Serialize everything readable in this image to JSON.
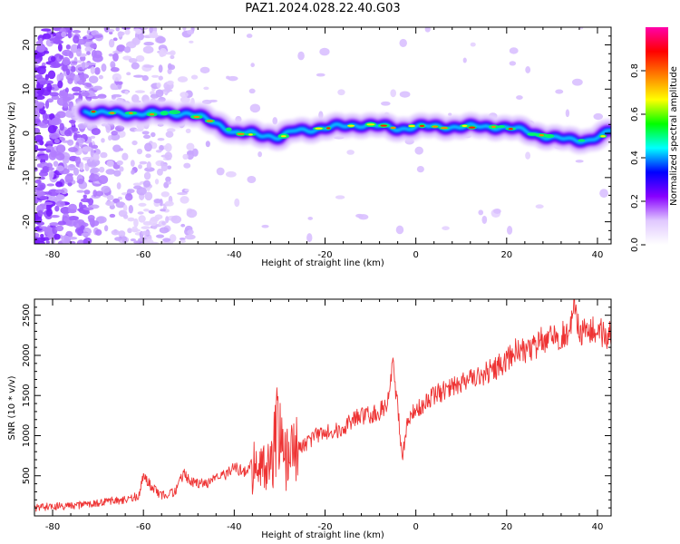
{
  "title": "PAZ1.2024.028.22.40.G03",
  "chart_data": [
    {
      "type": "heatmap",
      "xlabel": "Height of straight line (km)",
      "ylabel": "Frequency (Hz)",
      "xlim": [
        -84,
        43
      ],
      "ylim": [
        -25,
        24
      ],
      "xticks": [
        "-80",
        "-60",
        "-40",
        "-20",
        "0",
        "20",
        "40"
      ],
      "yticks": [
        "-20",
        "-10",
        "0",
        "10",
        "20"
      ],
      "colorbar": {
        "label": "Normalized spectral amplitude",
        "range": [
          0,
          1
        ],
        "ticks": [
          "0.0",
          "0.2",
          "0.4",
          "0.6",
          "0.8"
        ],
        "colors": [
          "#ffffff",
          "#e0c8ff",
          "#8800ff",
          "#0000ff",
          "#00ffff",
          "#00ff00",
          "#ffff00",
          "#ff8000",
          "#ff0000",
          "#ff00aa"
        ]
      },
      "ridge": {
        "height_km": [
          -73,
          -68,
          -63,
          -58,
          -54,
          -50,
          -47,
          -43,
          -40,
          -36,
          -32,
          -30,
          -27,
          -22,
          -17,
          -12,
          -7,
          -4,
          0,
          4,
          8,
          13,
          18,
          22,
          26,
          30,
          34,
          38,
          41,
          43
        ],
        "frequency_hz": [
          5,
          4.5,
          4.5,
          4.5,
          4.5,
          4.5,
          3.5,
          2,
          0,
          0,
          -0.5,
          -1,
          0.5,
          1,
          1.5,
          2,
          1.5,
          1,
          1.5,
          1.5,
          1.5,
          1.5,
          1.5,
          1,
          0,
          -1,
          -1.5,
          -1.5,
          -0.5,
          0.5
        ]
      }
    },
    {
      "type": "line",
      "xlabel": "Height of straight line (km)",
      "ylabel": "SNR (10 * v/v)",
      "xlim": [
        -84,
        43
      ],
      "ylim": [
        0,
        2700
      ],
      "xticks": [
        "-80",
        "-60",
        "-40",
        "-20",
        "0",
        "20",
        "40"
      ],
      "yticks": [
        "500",
        "1000",
        "1500",
        "2000",
        "2500"
      ],
      "color": "#ee3333",
      "series": [
        {
          "x": [
            -84,
            -80,
            -76,
            -72,
            -68,
            -64,
            -61,
            -60,
            -58,
            -56,
            -53,
            -51,
            -50,
            -48,
            -46,
            -44,
            -42,
            -40,
            -38,
            -36,
            -34,
            -32,
            -31,
            -30,
            -29,
            -28,
            -26,
            -24,
            -22,
            -20,
            -18,
            -16,
            -14,
            -12,
            -10,
            -8,
            -6,
            -5,
            -4,
            -3,
            -2,
            0,
            2,
            4,
            6,
            8,
            10,
            12,
            14,
            16,
            18,
            20,
            22,
            24,
            26,
            28,
            30,
            32,
            34,
            35,
            36,
            38,
            40,
            42,
            43
          ],
          "y": [
            100,
            120,
            120,
            150,
            180,
            200,
            250,
            500,
            350,
            250,
            300,
            550,
            450,
            400,
            400,
            500,
            500,
            600,
            550,
            650,
            650,
            700,
            900,
            1250,
            700,
            750,
            850,
            900,
            1000,
            1050,
            1050,
            1100,
            1200,
            1250,
            1250,
            1300,
            1450,
            1900,
            1350,
            700,
            1100,
            1350,
            1400,
            1500,
            1550,
            1600,
            1650,
            1700,
            1750,
            1800,
            1850,
            1950,
            2050,
            2050,
            2100,
            2200,
            2200,
            2250,
            2300,
            2600,
            2300,
            2300,
            2350,
            2200,
            2300
          ]
        }
      ]
    }
  ]
}
